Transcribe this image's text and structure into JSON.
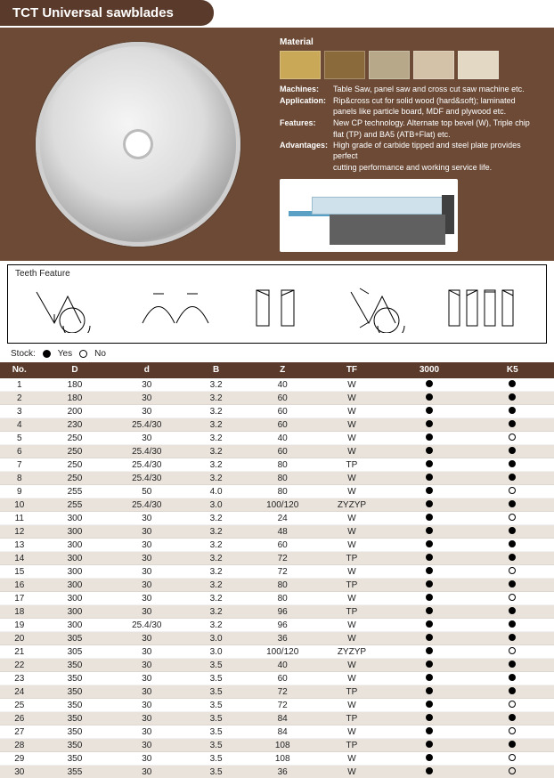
{
  "title": "TCT Universal sawblades",
  "material_label": "Material",
  "swatch_colors": [
    "#c9a857",
    "#8a6a3a",
    "#b6a889",
    "#d4c2a8",
    "#e2d8c4"
  ],
  "details": [
    {
      "k": "Machines:",
      "v": "Table Saw, panel saw and cross cut saw machine etc."
    },
    {
      "k": "Application:",
      "v": "Rip&cross cut for solid wood (hard&soft); laminated"
    },
    {
      "k": "",
      "v": "panels like particle board, MDF and plywood etc.",
      "indent": true
    },
    {
      "k": "Features:",
      "v": "New CP technology. Alternate top bevel (W), Triple chip"
    },
    {
      "k": "",
      "v": "flat (TP) and BA5 (ATB+Flat) etc.",
      "indent": true
    },
    {
      "k": "Advantages:",
      "v": "High grade of carbide tipped and steel plate provides perfect"
    },
    {
      "k": "",
      "v": "cutting performance and working service life.",
      "indent": true
    }
  ],
  "teeth_label": "Teeth Feature",
  "stock_label": "Stock:",
  "stock_yes": "Yes",
  "stock_no": "No",
  "columns": [
    "No.",
    "D",
    "d",
    "B",
    "Z",
    "TF",
    "3000",
    "K5"
  ],
  "col_widths": [
    "7%",
    "13%",
    "13%",
    "12%",
    "12%",
    "13%",
    "15%",
    "15%"
  ],
  "rows": [
    [
      "1",
      "180",
      "30",
      "3.2",
      "40",
      "W",
      true,
      true
    ],
    [
      "2",
      "180",
      "30",
      "3.2",
      "60",
      "W",
      true,
      true
    ],
    [
      "3",
      "200",
      "30",
      "3.2",
      "60",
      "W",
      true,
      true
    ],
    [
      "4",
      "230",
      "25.4/30",
      "3.2",
      "60",
      "W",
      true,
      true
    ],
    [
      "5",
      "250",
      "30",
      "3.2",
      "40",
      "W",
      true,
      false
    ],
    [
      "6",
      "250",
      "25.4/30",
      "3.2",
      "60",
      "W",
      true,
      true
    ],
    [
      "7",
      "250",
      "25.4/30",
      "3.2",
      "80",
      "TP",
      true,
      true
    ],
    [
      "8",
      "250",
      "25.4/30",
      "3.2",
      "80",
      "W",
      true,
      true
    ],
    [
      "9",
      "255",
      "50",
      "4.0",
      "80",
      "W",
      true,
      false
    ],
    [
      "10",
      "255",
      "25.4/30",
      "3.0",
      "100/120",
      "ZYZYP",
      true,
      true
    ],
    [
      "11",
      "300",
      "30",
      "3.2",
      "24",
      "W",
      true,
      false
    ],
    [
      "12",
      "300",
      "30",
      "3.2",
      "48",
      "W",
      true,
      true
    ],
    [
      "13",
      "300",
      "30",
      "3.2",
      "60",
      "W",
      true,
      true
    ],
    [
      "14",
      "300",
      "30",
      "3.2",
      "72",
      "TP",
      true,
      true
    ],
    [
      "15",
      "300",
      "30",
      "3.2",
      "72",
      "W",
      true,
      false
    ],
    [
      "16",
      "300",
      "30",
      "3.2",
      "80",
      "TP",
      true,
      true
    ],
    [
      "17",
      "300",
      "30",
      "3.2",
      "80",
      "W",
      true,
      false
    ],
    [
      "18",
      "300",
      "30",
      "3.2",
      "96",
      "TP",
      true,
      true
    ],
    [
      "19",
      "300",
      "25.4/30",
      "3.2",
      "96",
      "W",
      true,
      true
    ],
    [
      "20",
      "305",
      "30",
      "3.0",
      "36",
      "W",
      true,
      true
    ],
    [
      "21",
      "305",
      "30",
      "3.0",
      "100/120",
      "ZYZYP",
      true,
      false
    ],
    [
      "22",
      "350",
      "30",
      "3.5",
      "40",
      "W",
      true,
      true
    ],
    [
      "23",
      "350",
      "30",
      "3.5",
      "60",
      "W",
      true,
      true
    ],
    [
      "24",
      "350",
      "30",
      "3.5",
      "72",
      "TP",
      true,
      true
    ],
    [
      "25",
      "350",
      "30",
      "3.5",
      "72",
      "W",
      true,
      false
    ],
    [
      "26",
      "350",
      "30",
      "3.5",
      "84",
      "TP",
      true,
      true
    ],
    [
      "27",
      "350",
      "30",
      "3.5",
      "84",
      "W",
      true,
      false
    ],
    [
      "28",
      "350",
      "30",
      "3.5",
      "108",
      "TP",
      true,
      true
    ],
    [
      "29",
      "350",
      "30",
      "3.5",
      "108",
      "W",
      true,
      false
    ],
    [
      "30",
      "355",
      "30",
      "3.5",
      "36",
      "W",
      true,
      false
    ]
  ]
}
